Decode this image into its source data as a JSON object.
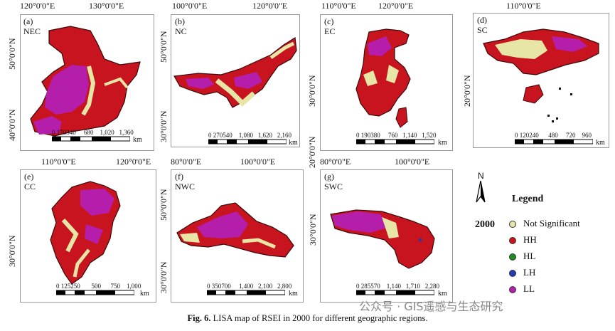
{
  "figure": {
    "caption_bold": "Fig. 6.",
    "caption_text": "LISA map of RSEI in 2000 for different geographic regions."
  },
  "watermark": "公众号 · GIS遥感与生态研究",
  "legend": {
    "north_label": "N",
    "title": "Legend",
    "year": "2000",
    "items": [
      {
        "label": "Not Significant",
        "color": "#e8e6a6"
      },
      {
        "label": "HH",
        "color": "#c8141e"
      },
      {
        "label": "HL",
        "color": "#1e8c1e"
      },
      {
        "label": "LH",
        "color": "#1e3cb4"
      },
      {
        "label": "LL",
        "color": "#b41eaa"
      }
    ]
  },
  "panels": [
    {
      "id": "a",
      "label": "(a)",
      "region": "NEC",
      "lon": [
        "120°0'0\"E",
        "130°0'0\"E"
      ],
      "lat": [
        "50°0'0\"N",
        "40°0'0\"N"
      ],
      "scale": [
        "0",
        "170",
        "340",
        "680",
        "1,020",
        "1,360"
      ],
      "unit": "km"
    },
    {
      "id": "b",
      "label": "(b)",
      "region": "NC",
      "lon": [
        "100°0'0\"E",
        "120°0'0\"E"
      ],
      "lat": [
        "50°0'0\"N",
        "30°0'0\"N"
      ],
      "scale": [
        "0",
        "270",
        "540",
        "1,080",
        "1,620",
        "2,160"
      ],
      "unit": "km"
    },
    {
      "id": "c",
      "label": "(c)",
      "region": "EC",
      "lon": [
        "110°0'0\"E",
        "120°0'0\"E"
      ],
      "lat": [
        "30°0'0\"N",
        "20°0'0\"N"
      ],
      "scale": [
        "0",
        "190",
        "380",
        "760",
        "1,140",
        "1,520"
      ],
      "unit": "km"
    },
    {
      "id": "d",
      "label": "(d)",
      "region": "SC",
      "lon": [
        "110°0'0\"E"
      ],
      "lat": [
        "20°0'0\"N"
      ],
      "scale": [
        "0",
        "120",
        "240",
        "480",
        "720",
        "960"
      ],
      "unit": "km"
    },
    {
      "id": "e",
      "label": "(e)",
      "region": "CC",
      "lon": [
        "110°0'0\"E",
        "120°0'0\"E"
      ],
      "lat": [
        "30°0'0\"N"
      ],
      "scale": [
        "0",
        "125",
        "250",
        "500",
        "750",
        "1,000"
      ],
      "unit": "km"
    },
    {
      "id": "f",
      "label": "(f)",
      "region": "NWC",
      "lon": [
        "80°0'0\"E",
        "100°0'0\"E"
      ],
      "lat": [
        "50°0'0\"N",
        "30°0'0\"N"
      ],
      "scale": [
        "0",
        "350",
        "700",
        "1,400",
        "2,100",
        "2,800"
      ],
      "unit": "km"
    },
    {
      "id": "g",
      "label": "(g)",
      "region": "SWC",
      "lon": [
        "80°0'0\"E",
        "100°0'0\"E"
      ],
      "lat": [
        "30°0'0\"N"
      ],
      "scale": [
        "0",
        "285",
        "570",
        "1,140",
        "1,710",
        "2,280"
      ],
      "unit": "km"
    }
  ]
}
